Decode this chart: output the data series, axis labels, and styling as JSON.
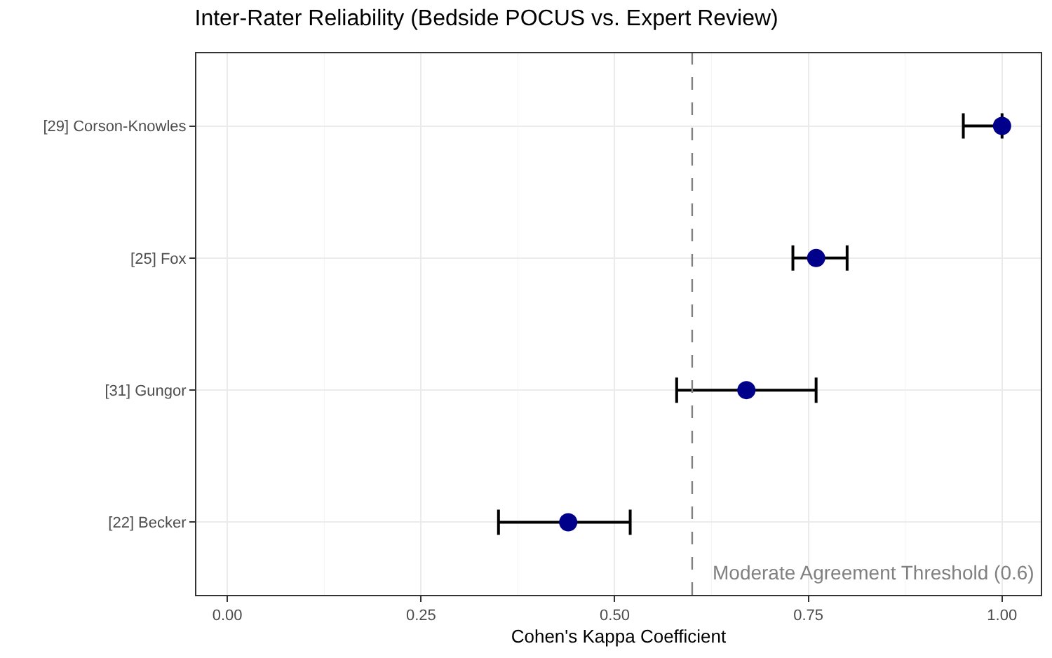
{
  "chart_data": {
    "type": "scatter",
    "orientation": "horizontal",
    "title": "Inter-Rater Reliability (Bedside POCUS vs. Expert Review)",
    "xlabel": "Cohen's Kappa Coefficient",
    "categories": [
      "[29] Corson-Knowles",
      "[25] Fox",
      "[31] Gungor",
      "[22] Becker"
    ],
    "values": [
      1.0,
      0.76,
      0.67,
      0.44
    ],
    "errors": [
      [
        0.95,
        1.0
      ],
      [
        0.73,
        0.8
      ],
      [
        0.58,
        0.76
      ],
      [
        0.35,
        0.52
      ]
    ],
    "color": "#00008b",
    "marker": "circle",
    "xlim": [
      -0.04,
      1.05
    ],
    "xticks": [
      {
        "value": 0,
        "label": "0.00"
      },
      {
        "value": 0.25,
        "label": "0.25"
      },
      {
        "value": 0.5,
        "label": "0.50"
      },
      {
        "value": 0.75,
        "label": "0.75"
      },
      {
        "value": 1,
        "label": "1.00"
      }
    ],
    "grid": true,
    "ref_lines": [
      {
        "axis": "x",
        "value": 0.6,
        "label": "Moderate Agreement Threshold (0.6)",
        "color": "#808080",
        "line_style": "dashed"
      }
    ]
  }
}
